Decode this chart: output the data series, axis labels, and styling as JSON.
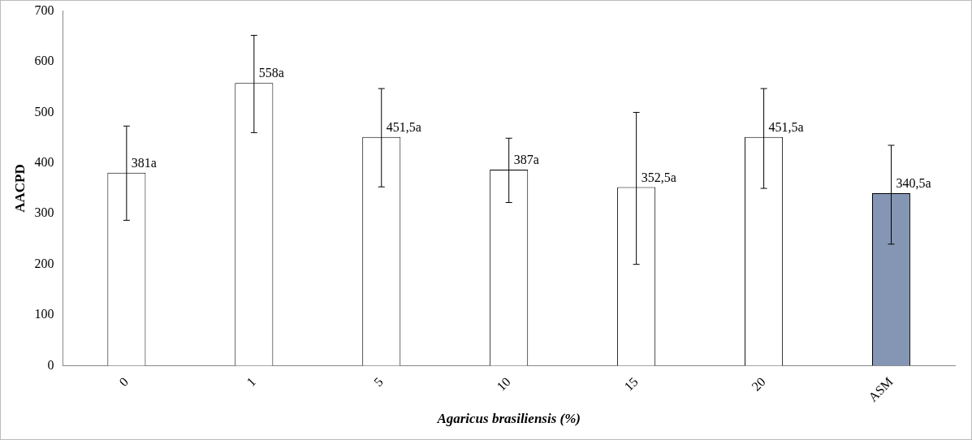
{
  "chart_data": {
    "type": "bar",
    "xlabel": "Agaricus brasiliensis (%)",
    "ylabel": "AACPD",
    "categories": [
      "0",
      "1",
      "5",
      "10",
      "15",
      "20",
      "ASM"
    ],
    "values": [
      381,
      558,
      451.5,
      387,
      352.5,
      451.5,
      340.5
    ],
    "colors": [
      "#ffffff",
      "#ffffff",
      "#ffffff",
      "#ffffff",
      "#ffffff",
      "#ffffff",
      "#8596b4"
    ],
    "errors": [
      [
        287,
        473
      ],
      [
        460,
        652
      ],
      [
        353,
        547
      ],
      [
        322,
        449
      ],
      [
        200,
        500
      ],
      [
        350,
        547
      ],
      [
        240,
        435
      ]
    ],
    "value_labels": [
      "381a",
      "558a",
      "451,5a",
      "387a",
      "352,5a",
      "451,5a",
      "340,5a"
    ],
    "ylim": [
      0,
      700
    ],
    "yticks": [
      0,
      100,
      200,
      300,
      400,
      500,
      600,
      700
    ],
    "grid": false,
    "legend": false
  }
}
